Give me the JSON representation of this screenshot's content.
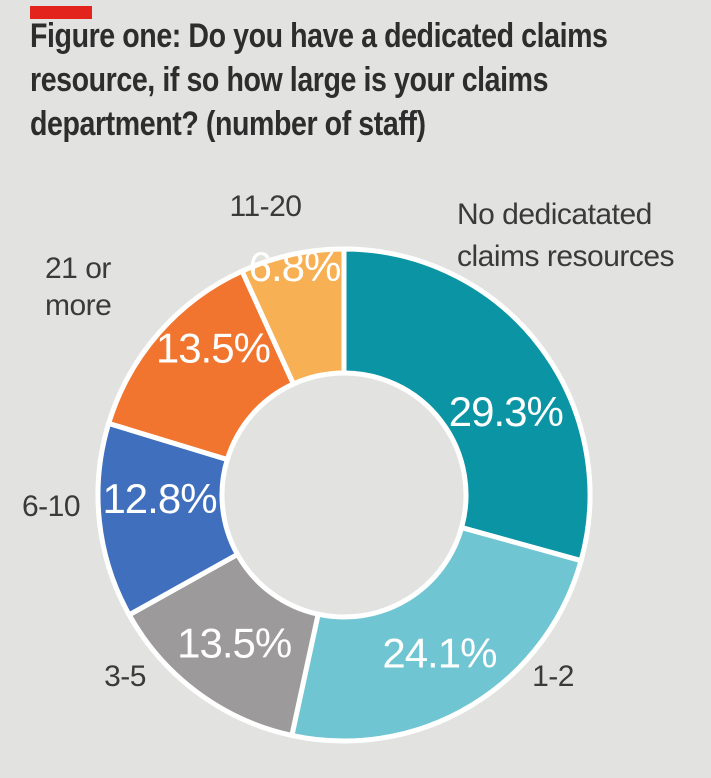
{
  "page": {
    "background": "#e2e2e1"
  },
  "accent_bar": {
    "color": "#e2241d"
  },
  "title": {
    "color": "#2d2d2d",
    "lines": [
      "Figure one: Do you have a dedicated claims",
      "resource, if so how large is your claims",
      "department? (number of staff)"
    ]
  },
  "labels": {
    "color": "#3a3a3a"
  },
  "chart_data": {
    "type": "pie",
    "subtype": "donut",
    "title": "Figure one: Do you have a dedicated claims resource, if so how large is your claims department? (number of staff)",
    "unit": "%",
    "categories": [
      "No dedicatated claims resources",
      "1-2",
      "3-5",
      "6-10",
      "21 or more",
      "11-20"
    ],
    "values": [
      29.3,
      24.1,
      13.5,
      12.8,
      13.5,
      6.8
    ],
    "slices": [
      {
        "category": "No dedicatated claims resources",
        "value": 29.3,
        "display": "29.3%",
        "color": "#0b95a4"
      },
      {
        "category": "1-2",
        "value": 24.1,
        "display": "24.1%",
        "color": "#70c5d3"
      },
      {
        "category": "3-5",
        "value": 13.5,
        "display": "13.5%",
        "color": "#9c9a9b"
      },
      {
        "category": "6-10",
        "value": 12.8,
        "display": "12.8%",
        "color": "#4070bd"
      },
      {
        "category": "21 or more",
        "value": 13.5,
        "display": "13.5%",
        "color": "#f1752f"
      },
      {
        "category": "11-20",
        "value": 6.8,
        "display": "6.8%",
        "color": "#f7b053"
      }
    ],
    "layout": {
      "start_angle_deg": 0,
      "direction": "clockwise",
      "inner_radius_fraction": 0.496,
      "outer_radius_px": 246,
      "stroke_color": "#ffffff",
      "stroke_width_px": 5,
      "legend": "none",
      "label_radius_fractions": [
        0.74,
        0.75,
        0.75,
        0.75,
        0.8,
        0.95
      ],
      "label_angle_offsets_deg": [
        10,
        0,
        0,
        5,
        7,
        0
      ]
    }
  }
}
